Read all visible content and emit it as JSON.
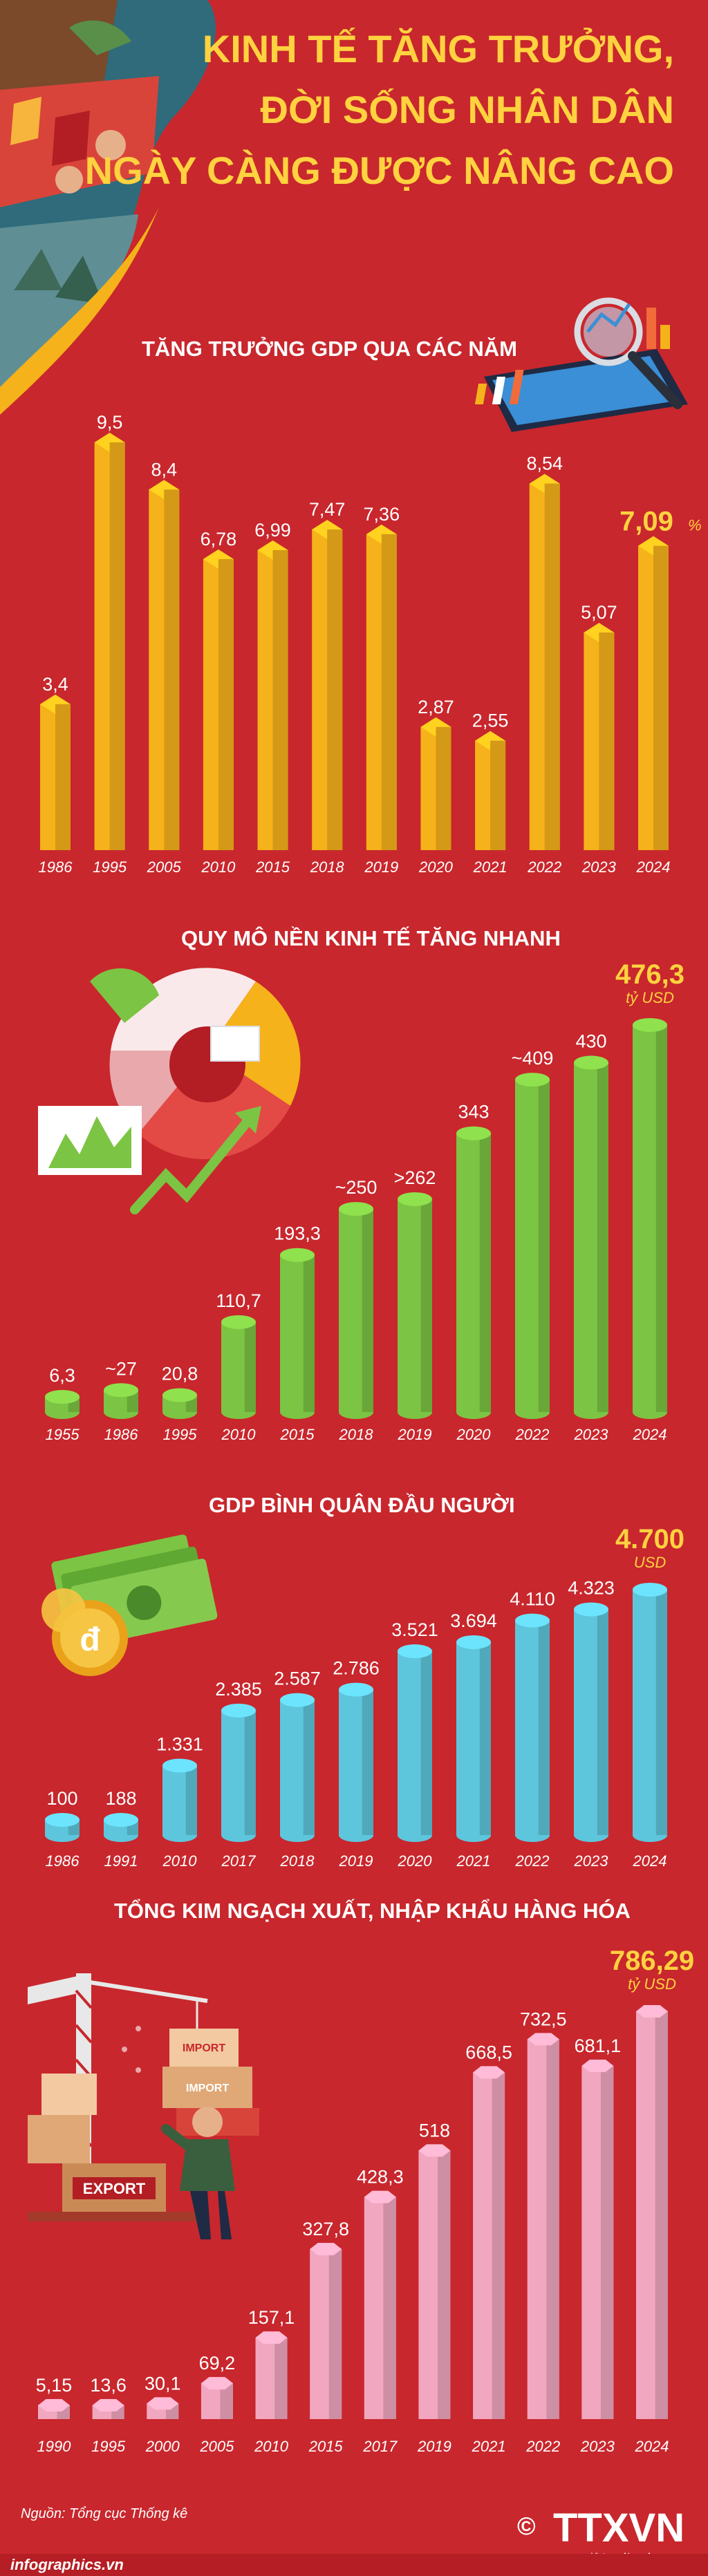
{
  "header": {
    "title_lines": [
      "KINH TẾ TĂNG TRƯỞNG,",
      "ĐỜI SỐNG NHÂN DÂN",
      "NGÀY CÀNG ĐƯỢC NÂNG CAO"
    ]
  },
  "colors": {
    "background": "#c8272d",
    "title": "#ffd23f",
    "gdp_growth": "#f6b21a",
    "scale": "#7cc443",
    "per_capita": "#5ec6dc",
    "trade": "#f2a7c0"
  },
  "chart_data": [
    {
      "id": "gdp_growth",
      "type": "bar",
      "title": "TĂNG TRƯỞNG GDP QUA CÁC NĂM",
      "categories": [
        "1986",
        "1995",
        "2005",
        "2010",
        "2015",
        "2018",
        "2019",
        "2020",
        "2021",
        "2022",
        "2023",
        "2024"
      ],
      "values": [
        3.4,
        9.5,
        8.4,
        6.78,
        6.99,
        7.47,
        7.36,
        2.87,
        2.55,
        8.54,
        5.07,
        7.09
      ],
      "labels": [
        "3,4",
        "9,5",
        "8,4",
        "6,78",
        "6,99",
        "7,47",
        "7,36",
        "2,87",
        "2,55",
        "8,54",
        "5,07",
        "7,09"
      ],
      "highlight_unit": "%",
      "ylim": [
        0,
        9.5
      ],
      "grid": false,
      "icon": "tablet-chart-icon"
    },
    {
      "id": "economy_scale",
      "type": "bar",
      "title": "QUY MÔ NỀN KINH TẾ TĂNG NHANH",
      "categories": [
        "1955",
        "1986",
        "1995",
        "2010",
        "2015",
        "2018",
        "2019",
        "2020",
        "2022",
        "2023",
        "2024"
      ],
      "values": [
        6.3,
        27,
        20.8,
        110.7,
        193.3,
        250,
        262,
        343,
        409,
        430,
        476.3
      ],
      "labels": [
        "6,3",
        "~27",
        "20,8",
        "110,7",
        "193,3",
        "~250",
        ">262",
        "343",
        "~409",
        "430",
        "476,3"
      ],
      "highlight_unit": "tỷ USD",
      "ylim": [
        0,
        476.3
      ],
      "grid": false,
      "icon": "pie-chart-icon"
    },
    {
      "id": "gdp_per_capita",
      "type": "bar",
      "title": "GDP BÌNH QUÂN ĐẦU NGƯỜI",
      "categories": [
        "1986",
        "1991",
        "2010",
        "2017",
        "2018",
        "2019",
        "2020",
        "2021",
        "2022",
        "2023",
        "2024"
      ],
      "values": [
        100,
        188,
        1331,
        2385,
        2587,
        2786,
        3521,
        3694,
        4110,
        4323,
        4700
      ],
      "labels": [
        "100",
        "188",
        "1.331",
        "2.385",
        "2.587",
        "2.786",
        "3.521",
        "3.694",
        "4.110",
        "4.323",
        "4.700"
      ],
      "highlight_unit": "USD",
      "ylim": [
        0,
        4700
      ],
      "grid": false,
      "icon": "money-icon"
    },
    {
      "id": "trade",
      "type": "bar",
      "title": "TỔNG KIM NGẠCH XUẤT, NHẬP KHẨU HÀNG HÓA",
      "categories": [
        "1990",
        "1995",
        "2000",
        "2005",
        "2010",
        "2015",
        "2017",
        "2019",
        "2021",
        "2022",
        "2023",
        "2024"
      ],
      "values": [
        5.15,
        13.6,
        30.1,
        69.2,
        157.1,
        327.8,
        428.3,
        518,
        668.5,
        732.5,
        681.1,
        786.29
      ],
      "labels": [
        "5,15",
        "13,6",
        "30,1",
        "69,2",
        "157,1",
        "327,8",
        "428,3",
        "518",
        "668,5",
        "732,5",
        "681,1",
        "786,29"
      ],
      "highlight_unit": "tỷ USD",
      "ylim": [
        0,
        786.29
      ],
      "grid": false,
      "icon": "export-import-icon",
      "illustration_labels": [
        "IMPORT",
        "IMPORT",
        "EXPORT"
      ]
    }
  ],
  "footer": {
    "source": "Nguồn: Tổng cục Thống kê",
    "site": "infographics.vn",
    "logo": "TTXVN",
    "logo_sub": "Vietnam News Agency",
    "copyright": "©"
  }
}
